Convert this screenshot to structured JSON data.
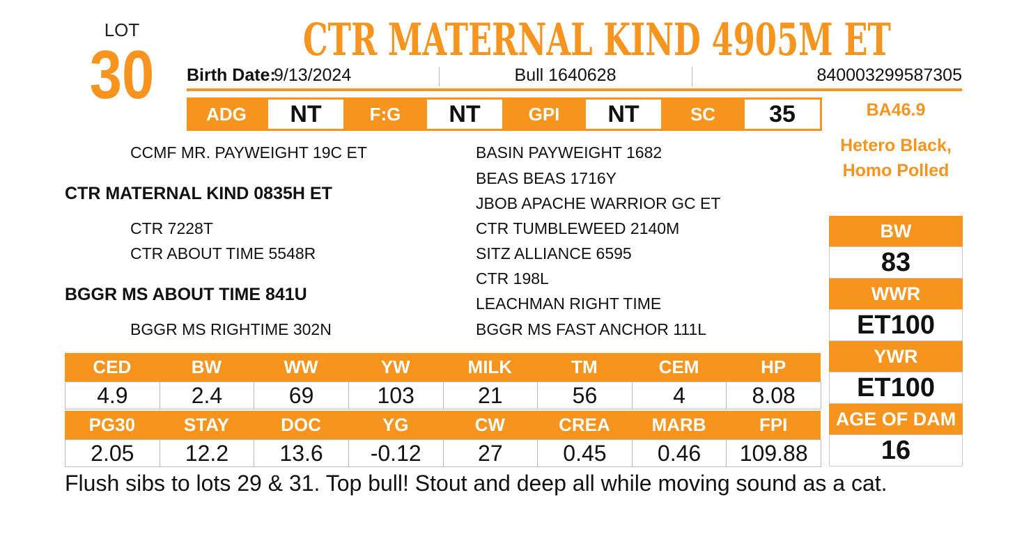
{
  "lot": {
    "label": "LOT",
    "number": 30
  },
  "title": "CTR MATERNAL KIND 4905M ET",
  "info": {
    "birth_date_label": "Birth Date:",
    "birth_date": "9/13/2024",
    "registration": "Bull 1640628",
    "tag": "840003299587305"
  },
  "performance": [
    {
      "label": "ADG",
      "value": "NT"
    },
    {
      "label": "F:G",
      "value": "NT"
    },
    {
      "label": "GPI",
      "value": "NT"
    },
    {
      "label": "SC",
      "value": 35
    }
  ],
  "side": {
    "ba": "BA46.9",
    "genetics": [
      "Hetero Black,",
      "Homo Polled"
    ]
  },
  "pedigree": {
    "sire_sire": "CCMF MR. PAYWEIGHT 19C ET",
    "sire": "CTR MATERNAL KIND 0835H ET",
    "sire_dam": "CTR 7228T",
    "dam_sire": "CTR ABOUT TIME 5548R",
    "dam": "BGGR MS ABOUT TIME 841U",
    "dam_dam": "BGGR MS RIGHTIME 302N",
    "great_grandparents": [
      "BASIN PAYWEIGHT 1682",
      "BEAS BEAS 1716Y",
      "JBOB APACHE WARRIOR GC ET",
      "CTR TUMBLEWEED 2140M",
      "SITZ ALLIANCE 6595",
      "CTR 198L",
      "LEACHMAN RIGHT TIME",
      "BGGR MS FAST ANCHOR 111L"
    ]
  },
  "epd": [
    {
      "headers": [
        "CED",
        "BW",
        "WW",
        "YW",
        "MILK",
        "TM",
        "CEM",
        "HP"
      ],
      "values": [
        4.9,
        2.4,
        69,
        103,
        21,
        56,
        4,
        8.08
      ]
    },
    {
      "headers": [
        "PG30",
        "STAY",
        "DOC",
        "YG",
        "CW",
        "CREA",
        "MARB",
        "FPI"
      ],
      "values": [
        2.05,
        12.2,
        13.6,
        -0.12,
        27,
        0.45,
        0.46,
        109.88
      ]
    }
  ],
  "side_stats": [
    {
      "label": "BW",
      "value": 83
    },
    {
      "label": "WWR",
      "value": "ET100"
    },
    {
      "label": "YWR",
      "value": "ET100"
    },
    {
      "label": "AGE OF DAM",
      "value": 16
    }
  ],
  "comment": "Flush sibs to lots 29 & 31.  Top bull!  Stout and deep all while moving sound as a cat."
}
